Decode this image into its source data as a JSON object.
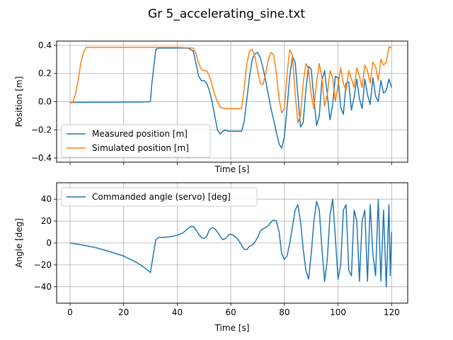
{
  "figure": {
    "suptitle": "Gr 5_accelerating_sine.txt"
  },
  "chart_data": [
    {
      "type": "line",
      "xlabel": "Time [s]",
      "ylabel": "Position [m]",
      "xlim": [
        -5,
        126
      ],
      "ylim": [
        -0.43,
        0.43
      ],
      "xticks": [
        0,
        20,
        40,
        60,
        80,
        100,
        120
      ],
      "show_xtick_labels": false,
      "yticks": [
        -0.4,
        -0.2,
        0.0,
        0.2,
        0.4
      ],
      "ytick_labels": [
        "−0.4",
        "−0.2",
        "0.0",
        "0.2",
        "0.4"
      ],
      "grid": true,
      "legend": "lower-left",
      "series": [
        {
          "name": "Measured position [m]",
          "color": "#1f77b4",
          "x": [
            0,
            5,
            10,
            15,
            20,
            25,
            30,
            30.5,
            32,
            33,
            35,
            40,
            44,
            46,
            47,
            48,
            49,
            50,
            51,
            52,
            53,
            54,
            55,
            56,
            57,
            58,
            59,
            60,
            62,
            64,
            65,
            66,
            67,
            68,
            69,
            70,
            71,
            72,
            73,
            74,
            75,
            76,
            77,
            78,
            79,
            80,
            81,
            82,
            83,
            84,
            85,
            86,
            87,
            88,
            89,
            90,
            91,
            92,
            93,
            94,
            95,
            96,
            97,
            98,
            99,
            100,
            101,
            102,
            103,
            104,
            105,
            106,
            107,
            108,
            109,
            110,
            111,
            112,
            113,
            114,
            115,
            116,
            117,
            118,
            119,
            120
          ],
          "y": [
            -0.005,
            -0.005,
            -0.004,
            -0.004,
            -0.003,
            -0.003,
            0.0,
            0.12,
            0.37,
            0.38,
            0.38,
            0.38,
            0.38,
            0.36,
            0.27,
            0.18,
            0.15,
            0.15,
            0.13,
            0.08,
            0.0,
            -0.1,
            -0.2,
            -0.23,
            -0.21,
            -0.2,
            -0.21,
            -0.21,
            -0.21,
            -0.21,
            -0.14,
            0.02,
            0.18,
            0.3,
            0.34,
            0.35,
            0.31,
            0.24,
            0.15,
            0.05,
            -0.05,
            -0.13,
            -0.22,
            -0.3,
            -0.33,
            -0.25,
            -0.04,
            0.18,
            0.32,
            0.28,
            0.05,
            -0.18,
            -0.15,
            0.08,
            0.25,
            0.23,
            0.02,
            -0.17,
            -0.1,
            0.15,
            0.22,
            0.05,
            -0.13,
            -0.02,
            0.18,
            0.17,
            -0.04,
            -0.09,
            0.13,
            0.14,
            -0.06,
            0.03,
            0.16,
            0.02,
            -0.05,
            0.16,
            0.05,
            -0.02,
            0.17,
            0.04,
            0.0,
            0.15,
            0.06,
            0.08,
            0.16,
            0.1
          ]
        },
        {
          "name": "Simulated position [m]",
          "color": "#ff7f0e",
          "x": [
            0,
            1,
            2,
            3,
            4,
            5,
            6,
            10,
            20,
            30,
            40,
            46,
            47,
            48,
            49,
            50,
            51,
            52,
            53,
            54,
            55,
            56,
            58,
            60,
            62,
            64,
            65,
            66,
            67,
            68,
            69,
            70,
            71,
            72,
            73,
            74,
            75,
            76,
            77,
            78,
            79,
            80,
            81,
            82,
            83,
            84,
            85,
            86,
            87,
            88,
            89,
            90,
            91,
            92,
            93,
            94,
            95,
            96,
            97,
            98,
            99,
            100,
            101,
            102,
            103,
            104,
            105,
            106,
            107,
            108,
            109,
            110,
            111,
            112,
            113,
            114,
            115,
            116,
            117,
            118,
            119,
            120
          ],
          "y": [
            -0.01,
            -0.005,
            0.05,
            0.15,
            0.27,
            0.35,
            0.385,
            0.385,
            0.385,
            0.385,
            0.385,
            0.38,
            0.34,
            0.27,
            0.23,
            0.22,
            0.22,
            0.18,
            0.12,
            0.05,
            0.0,
            -0.04,
            -0.05,
            -0.05,
            -0.05,
            -0.05,
            0.1,
            0.27,
            0.36,
            0.37,
            0.32,
            0.22,
            0.13,
            0.12,
            0.2,
            0.3,
            0.35,
            0.33,
            0.2,
            0.02,
            -0.08,
            -0.05,
            0.2,
            0.37,
            0.33,
            0.05,
            -0.15,
            -0.1,
            0.13,
            0.27,
            0.23,
            0.05,
            -0.05,
            0.14,
            0.27,
            0.17,
            -0.03,
            0.05,
            0.22,
            0.17,
            0.0,
            0.12,
            0.24,
            0.13,
            0.08,
            0.22,
            0.16,
            0.1,
            0.24,
            0.18,
            0.1,
            0.26,
            0.22,
            0.13,
            0.28,
            0.25,
            0.15,
            0.3,
            0.26,
            0.28,
            0.39,
            0.38
          ]
        }
      ]
    },
    {
      "type": "line",
      "xlabel": "Time [s]",
      "ylabel": "Angle [deg]",
      "xlim": [
        -5,
        126
      ],
      "ylim": [
        -55,
        55
      ],
      "xticks": [
        0,
        20,
        40,
        60,
        80,
        100,
        120
      ],
      "xtick_labels": [
        "0",
        "20",
        "40",
        "60",
        "80",
        "100",
        "120"
      ],
      "show_xtick_labels": true,
      "yticks": [
        -40,
        -20,
        0,
        20,
        40
      ],
      "ytick_labels": [
        "−40",
        "−20",
        "0",
        "20",
        "40"
      ],
      "grid": true,
      "legend": "top-left",
      "series": [
        {
          "name": "Commanded angle (servo) [deg]",
          "color": "#1f77b4",
          "x": [
            0,
            5,
            10,
            15,
            20,
            25,
            28,
            30,
            31,
            32,
            33,
            35,
            38,
            40,
            42,
            44,
            45,
            46,
            47,
            48,
            49,
            50,
            51,
            52,
            53,
            54,
            55,
            56,
            57,
            58,
            59,
            60,
            61,
            62,
            63,
            64,
            65,
            66,
            67,
            68,
            69,
            70,
            71,
            72,
            73,
            74,
            75,
            76,
            77,
            78,
            79,
            80,
            81,
            82,
            83,
            84,
            85,
            86,
            87,
            88,
            89,
            90,
            91,
            92,
            93,
            94,
            95,
            96,
            97,
            98,
            99,
            100,
            101,
            102,
            103,
            104,
            105,
            106,
            107,
            108,
            109,
            110,
            111,
            112,
            113,
            114,
            115,
            116,
            117,
            118,
            119,
            119.5,
            120
          ],
          "y": [
            0,
            -2,
            -4.5,
            -8,
            -12,
            -18,
            -23,
            -27,
            -12,
            3,
            5,
            5,
            6,
            7,
            9,
            13,
            15,
            15,
            12,
            8,
            5,
            4,
            6,
            12,
            14,
            13,
            10,
            6,
            3,
            4,
            7,
            8,
            7,
            5,
            2,
            -2,
            -6,
            -6,
            -3,
            -2,
            1,
            5,
            11,
            13,
            14,
            16,
            19,
            21,
            20,
            10,
            -10,
            -15,
            -12,
            0,
            15,
            30,
            35,
            20,
            -5,
            -25,
            -33,
            -10,
            20,
            38,
            30,
            -5,
            -35,
            -15,
            25,
            40,
            5,
            -33,
            -20,
            30,
            35,
            -25,
            -30,
            30,
            20,
            -35,
            20,
            30,
            -35,
            35,
            -10,
            -30,
            40,
            -35,
            30,
            -40,
            35,
            -30,
            10
          ]
        }
      ]
    }
  ]
}
